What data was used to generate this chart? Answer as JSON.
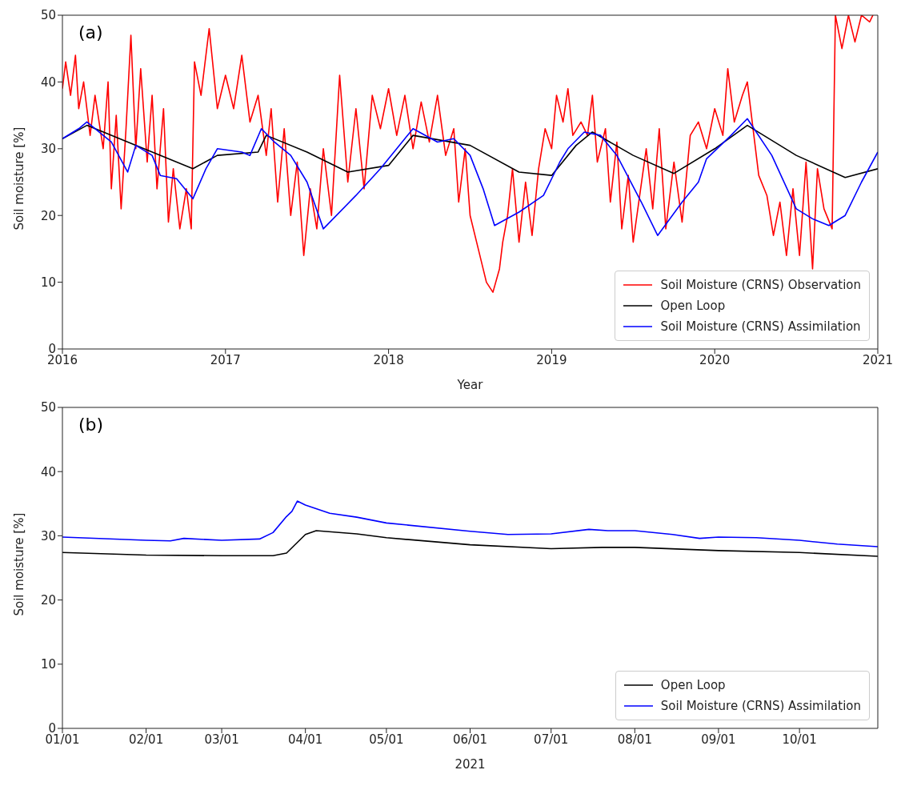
{
  "chart_data": [
    {
      "type": "line",
      "annotations": [
        "(a)"
      ],
      "xlabel": "Year",
      "ylabel": "Soil moisture [%]",
      "xlim": [
        2016,
        2021
      ],
      "xticks": [
        2016,
        2017,
        2018,
        2019,
        2020,
        2021
      ],
      "ylim": [
        0,
        50
      ],
      "yticks": [
        0,
        10,
        20,
        30,
        40,
        50
      ],
      "legend": "bottom right",
      "marker": "none",
      "line_style": "solid",
      "series": [
        {
          "name": "Soil Moisture (CRNS) Observation",
          "color": "#ff0000",
          "x": [
            2016.0,
            2016.02,
            2016.05,
            2016.08,
            2016.1,
            2016.13,
            2016.17,
            2016.2,
            2016.25,
            2016.28,
            2016.3,
            2016.33,
            2016.36,
            2016.39,
            2016.42,
            2016.45,
            2016.48,
            2016.52,
            2016.55,
            2016.58,
            2016.62,
            2016.65,
            2016.68,
            2016.72,
            2016.76,
            2016.79,
            2016.81,
            2016.85,
            2016.9,
            2016.95,
            2017.0,
            2017.05,
            2017.1,
            2017.15,
            2017.2,
            2017.25,
            2017.28,
            2017.32,
            2017.36,
            2017.4,
            2017.44,
            2017.48,
            2017.52,
            2017.56,
            2017.6,
            2017.65,
            2017.7,
            2017.75,
            2017.8,
            2017.85,
            2017.9,
            2017.95,
            2018.0,
            2018.05,
            2018.1,
            2018.15,
            2018.2,
            2018.25,
            2018.3,
            2018.35,
            2018.4,
            2018.43,
            2018.47,
            2018.5,
            2018.55,
            2018.6,
            2018.64,
            2018.68,
            2018.7,
            2018.73,
            2018.76,
            2018.8,
            2018.84,
            2018.88,
            2018.92,
            2018.96,
            2019.0,
            2019.03,
            2019.07,
            2019.1,
            2019.13,
            2019.18,
            2019.22,
            2019.25,
            2019.28,
            2019.33,
            2019.36,
            2019.4,
            2019.43,
            2019.47,
            2019.5,
            2019.54,
            2019.58,
            2019.62,
            2019.66,
            2019.7,
            2019.75,
            2019.8,
            2019.85,
            2019.9,
            2019.95,
            2020.0,
            2020.05,
            2020.08,
            2020.12,
            2020.17,
            2020.2,
            2020.23,
            2020.27,
            2020.32,
            2020.36,
            2020.4,
            2020.44,
            2020.48,
            2020.52,
            2020.56,
            2020.6,
            2020.63,
            2020.67,
            2020.72,
            2020.74,
            2020.78,
            2020.82,
            2020.86,
            2020.9,
            2020.95,
            2020.97
          ],
          "values": [
            39,
            43,
            38,
            44,
            36,
            40,
            32,
            38,
            30,
            40,
            24,
            35,
            21,
            33,
            47,
            30,
            42,
            28,
            38,
            24,
            36,
            19,
            27,
            18,
            24,
            18,
            43,
            38,
            48,
            36,
            41,
            36,
            44,
            34,
            38,
            29,
            36,
            22,
            33,
            20,
            28,
            14,
            24,
            18,
            30,
            20,
            41,
            25,
            36,
            24,
            38,
            33,
            39,
            32,
            38,
            30,
            37,
            31,
            38,
            29,
            33,
            22,
            30,
            20,
            15,
            10,
            8.5,
            12,
            16,
            20,
            27,
            16,
            25,
            17,
            27,
            33,
            30,
            38,
            34,
            39,
            32,
            34,
            32,
            38,
            28,
            33,
            22,
            31,
            18,
            26,
            16,
            23,
            30,
            21,
            33,
            18,
            28,
            19,
            32,
            34,
            30,
            36,
            32,
            42,
            34,
            38,
            40,
            34,
            26,
            23,
            17,
            22,
            14,
            24,
            14,
            28,
            12,
            27,
            21,
            18,
            50,
            45,
            50,
            46,
            50,
            49,
            50
          ]
        },
        {
          "name": "Open Loop",
          "color": "#000000",
          "x": [
            2016.0,
            2016.15,
            2016.5,
            2016.8,
            2016.95,
            2017.2,
            2017.25,
            2017.5,
            2017.75,
            2018.0,
            2018.15,
            2018.5,
            2018.8,
            2019.0,
            2019.15,
            2019.25,
            2019.5,
            2019.75,
            2020.0,
            2020.2,
            2020.5,
            2020.8,
            2021.0
          ],
          "values": [
            31.5,
            33.5,
            30,
            27,
            29,
            29.5,
            32,
            29.5,
            26.5,
            27.5,
            32,
            30.5,
            26.5,
            26,
            30.5,
            32.5,
            29,
            26.3,
            30,
            33.5,
            29,
            25.7,
            27
          ]
        },
        {
          "name": "Soil Moisture (CRNS) Assimilation",
          "color": "#0000ff",
          "x": [
            2016.0,
            2016.1,
            2016.15,
            2016.3,
            2016.4,
            2016.45,
            2016.55,
            2016.6,
            2016.7,
            2016.8,
            2016.88,
            2016.95,
            2017.1,
            2017.15,
            2017.22,
            2017.3,
            2017.4,
            2017.5,
            2017.6,
            2017.8,
            2017.95,
            2018.05,
            2018.15,
            2018.3,
            2018.4,
            2018.5,
            2018.58,
            2018.65,
            2018.8,
            2018.95,
            2019.05,
            2019.1,
            2019.2,
            2019.3,
            2019.4,
            2019.55,
            2019.65,
            2019.8,
            2019.9,
            2019.95,
            2020.1,
            2020.2,
            2020.35,
            2020.5,
            2020.6,
            2020.7,
            2020.8,
            2020.9,
            2021.0
          ],
          "values": [
            31.5,
            33,
            34,
            31,
            26.5,
            30.5,
            29,
            26,
            25.5,
            22.5,
            27,
            30,
            29.5,
            29,
            33,
            31,
            29,
            25,
            18,
            23,
            27,
            30,
            33,
            31,
            31.5,
            29,
            24,
            18.5,
            20.5,
            23,
            28,
            30,
            32.5,
            32,
            29,
            22,
            17,
            22,
            25,
            28.5,
            32,
            34.5,
            29,
            21,
            19.5,
            18.5,
            20,
            25,
            29.5
          ]
        }
      ]
    },
    {
      "type": "line",
      "annotations": [
        "(b)"
      ],
      "xlabel": "2021",
      "ylabel": "Soil moisture [%]",
      "xlim": [
        "2021-01-01",
        "2021-10-30"
      ],
      "xticks": [
        {
          "value": "2021-01-01",
          "label": "01/01"
        },
        {
          "value": "2021-02-01",
          "label": "02/01"
        },
        {
          "value": "2021-03-01",
          "label": "03/01"
        },
        {
          "value": "2021-04-01",
          "label": "04/01"
        },
        {
          "value": "2021-05-01",
          "label": "05/01"
        },
        {
          "value": "2021-06-01",
          "label": "06/01"
        },
        {
          "value": "2021-07-01",
          "label": "07/01"
        },
        {
          "value": "2021-08-01",
          "label": "08/01"
        },
        {
          "value": "2021-09-01",
          "label": "09/01"
        },
        {
          "value": "2021-10-01",
          "label": "10/01"
        }
      ],
      "ylim": [
        0,
        50
      ],
      "yticks": [
        0,
        10,
        20,
        30,
        40,
        50
      ],
      "legend": "bottom right",
      "marker": "none",
      "line_style": "solid",
      "series": [
        {
          "name": "Open Loop",
          "color": "#000000",
          "x": [
            "2021-01-01",
            "2021-02-01",
            "2021-03-01",
            "2021-03-20",
            "2021-03-25",
            "2021-04-01",
            "2021-04-05",
            "2021-04-20",
            "2021-05-01",
            "2021-06-01",
            "2021-07-01",
            "2021-07-20",
            "2021-08-01",
            "2021-09-01",
            "2021-10-01",
            "2021-10-30"
          ],
          "values": [
            27.4,
            27,
            26.9,
            26.9,
            27.3,
            30.2,
            30.8,
            30.3,
            29.7,
            28.6,
            28,
            28.2,
            28.2,
            27.7,
            27.4,
            26.8
          ]
        },
        {
          "name": "Soil Moisture (CRNS) Assimilation",
          "color": "#0000ff",
          "x": [
            "2021-01-01",
            "2021-02-01",
            "2021-02-10",
            "2021-02-15",
            "2021-03-01",
            "2021-03-15",
            "2021-03-20",
            "2021-03-25",
            "2021-03-27",
            "2021-03-29",
            "2021-04-01",
            "2021-04-10",
            "2021-04-20",
            "2021-05-01",
            "2021-06-01",
            "2021-06-15",
            "2021-07-01",
            "2021-07-15",
            "2021-07-22",
            "2021-08-01",
            "2021-08-15",
            "2021-08-25",
            "2021-09-01",
            "2021-09-15",
            "2021-10-01",
            "2021-10-15",
            "2021-10-30"
          ],
          "values": [
            29.8,
            29.3,
            29.2,
            29.6,
            29.3,
            29.5,
            30.5,
            33,
            33.8,
            35.4,
            34.8,
            33.5,
            32.9,
            32,
            30.7,
            30.2,
            30.3,
            31,
            30.8,
            30.8,
            30.2,
            29.6,
            29.8,
            29.7,
            29.3,
            28.7,
            28.3
          ]
        }
      ]
    }
  ]
}
